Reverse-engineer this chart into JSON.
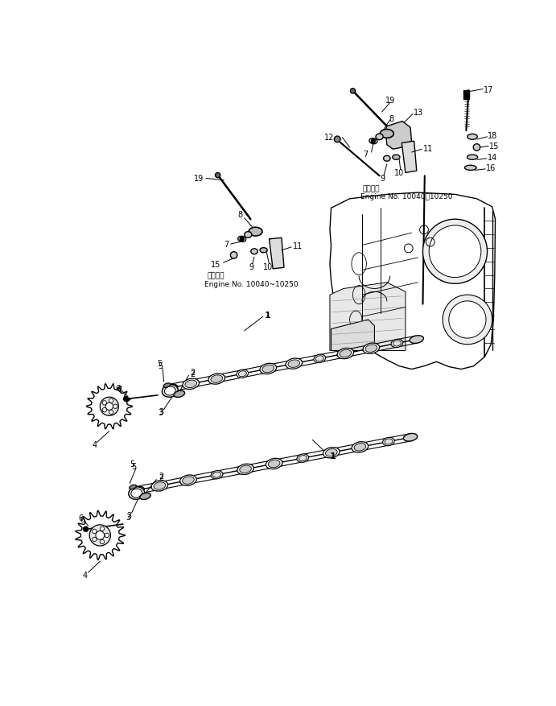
{
  "background_color": "#ffffff",
  "line_color": "#000000",
  "text_color": "#000000",
  "figsize": [
    6.91,
    8.78
  ],
  "dpi": 100,
  "label_eng_no1": "適用号笪",
  "label_eng_no2": "Engine No. 10040～10250",
  "label_eng_no3": "適用号笪",
  "label_eng_no4": "Engine No. 10040~10250"
}
